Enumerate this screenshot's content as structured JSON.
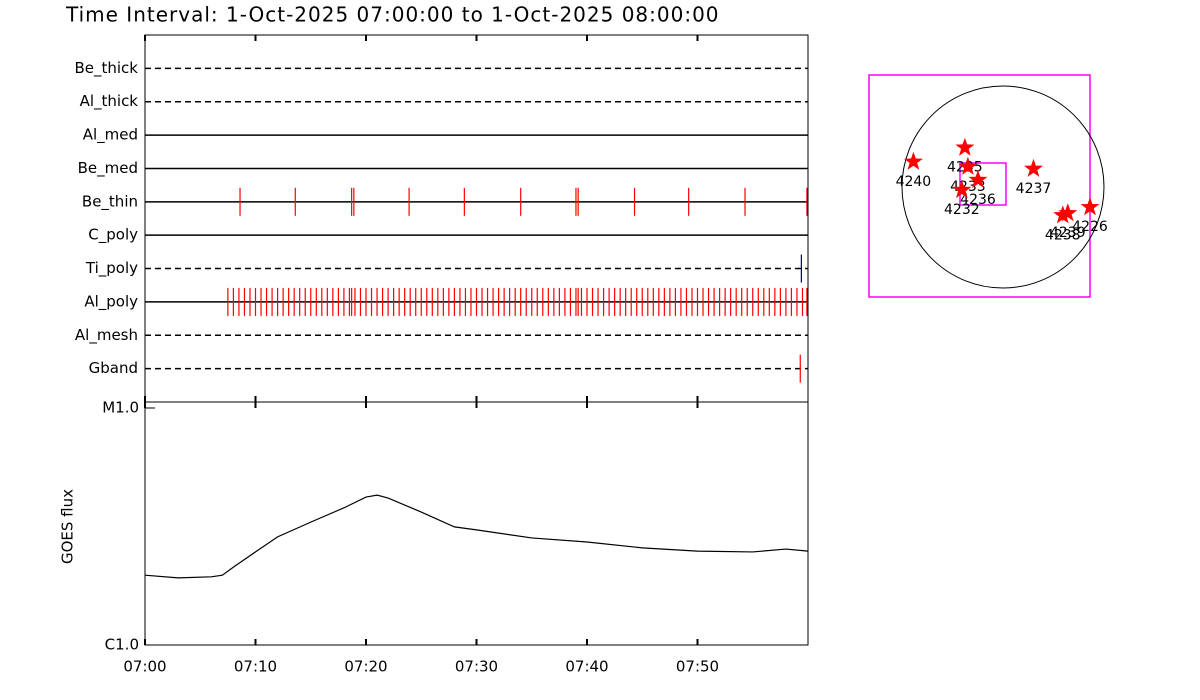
{
  "chart_data": [
    {
      "type": "timeline",
      "title": "Time Interval:  1-Oct-2025 07:00:00 to  1-Oct-2025 08:00:00",
      "xlim": [
        0,
        60
      ],
      "xticks": [
        {
          "value": 0,
          "label": "07:00"
        },
        {
          "value": 10,
          "label": "07:10"
        },
        {
          "value": 20,
          "label": "07:20"
        },
        {
          "value": 30,
          "label": "07:30"
        },
        {
          "value": 40,
          "label": "07:40"
        },
        {
          "value": 50,
          "label": "07:50"
        }
      ],
      "filters": [
        {
          "name": "Be_thick",
          "style": "dashed",
          "color": "#ff0000",
          "events": []
        },
        {
          "name": "Al_thick",
          "style": "dashed",
          "color": "#ff0000",
          "events": []
        },
        {
          "name": "Al_med",
          "style": "solid",
          "color": "#ff0000",
          "events": []
        },
        {
          "name": "Be_med",
          "style": "solid",
          "color": "#ff0000",
          "events": []
        },
        {
          "name": "Be_thin",
          "style": "solid",
          "color": "#ff0000",
          "events": [
            8.6,
            13.6,
            18.7,
            18.9,
            23.9,
            28.9,
            34.0,
            39.0,
            39.2,
            44.3,
            49.2,
            54.3,
            59.9
          ]
        },
        {
          "name": "C_poly",
          "style": "solid",
          "color": "#ff0000",
          "events": []
        },
        {
          "name": "Ti_poly",
          "style": "dashed",
          "color": "#000080",
          "events": [
            59.4
          ]
        },
        {
          "name": "Al_poly",
          "style": "solid",
          "color": "#ff0000",
          "events": [
            7.5,
            8,
            8.5,
            9,
            9.5,
            10,
            10.5,
            11,
            11.5,
            12,
            12.5,
            13,
            13.5,
            14,
            14.5,
            15,
            15.5,
            16,
            16.5,
            17,
            17.5,
            18,
            18.5,
            18.7,
            19,
            19.5,
            20,
            20.5,
            21,
            21.5,
            22,
            22.5,
            23,
            23.5,
            24,
            24.5,
            25,
            25.5,
            26,
            26.5,
            27,
            27.5,
            28,
            28.5,
            29,
            29.5,
            30,
            30.5,
            31,
            31.5,
            32,
            32.5,
            33,
            33.5,
            34,
            34.5,
            35,
            35.5,
            36,
            36.5,
            37,
            37.5,
            38,
            38.5,
            39,
            39.2,
            39.5,
            40,
            40.5,
            41,
            41.5,
            42,
            42.5,
            43,
            43.5,
            44,
            44.5,
            45,
            45.5,
            46,
            46.5,
            47,
            47.5,
            48,
            48.5,
            49,
            49.5,
            50,
            50.5,
            51,
            51.5,
            52,
            52.5,
            53,
            53.5,
            54,
            54.5,
            55,
            55.5,
            56,
            56.5,
            57,
            57.5,
            58,
            58.5,
            59,
            59.5,
            59.9
          ]
        },
        {
          "name": "Al_mesh",
          "style": "dashed",
          "color": "#ff0000",
          "events": []
        },
        {
          "name": "Gband",
          "style": "dashed",
          "color": "#ff0000",
          "events": [
            59.3
          ]
        }
      ]
    },
    {
      "type": "line",
      "y_label": "GOES flux",
      "log_y": true,
      "color": "#000000",
      "xlim": [
        0,
        60
      ],
      "ylim": [
        1e-06,
        1e-05
      ],
      "yticks": [
        {
          "value": 1e-06,
          "label": "C1.0"
        },
        {
          "value": 1e-05,
          "label": "M1.0"
        }
      ],
      "x": [
        0,
        3,
        6,
        7,
        8,
        10,
        12,
        15,
        18,
        20,
        21,
        22,
        25,
        28,
        30,
        35,
        40,
        45,
        50,
        55,
        58,
        60
      ],
      "values": [
        1.97e-06,
        1.92e-06,
        1.94e-06,
        1.97e-06,
        2.13e-06,
        2.47e-06,
        2.86e-06,
        3.3e-06,
        3.79e-06,
        4.21e-06,
        4.29e-06,
        4.17e-06,
        3.64e-06,
        3.15e-06,
        3.06e-06,
        2.83e-06,
        2.72e-06,
        2.57e-06,
        2.49e-06,
        2.47e-06,
        2.54e-06,
        2.49e-06
      ]
    },
    {
      "type": "scatter",
      "color": "#ff0000",
      "xlim": [
        -1.33,
        0.86
      ],
      "ylim": [
        -1.09,
        1.11
      ],
      "labels": [
        "4240",
        "4235",
        "4233",
        "4236",
        "4232",
        "4237",
        "4226",
        "4238",
        "4239"
      ],
      "x": [
        -0.89,
        -0.38,
        -0.35,
        -0.25,
        -0.41,
        0.3,
        0.86,
        0.59,
        0.64
      ],
      "y": [
        0.25,
        0.39,
        0.2,
        0.07,
        -0.03,
        0.18,
        -0.2,
        -0.28,
        -0.26
      ]
    }
  ]
}
